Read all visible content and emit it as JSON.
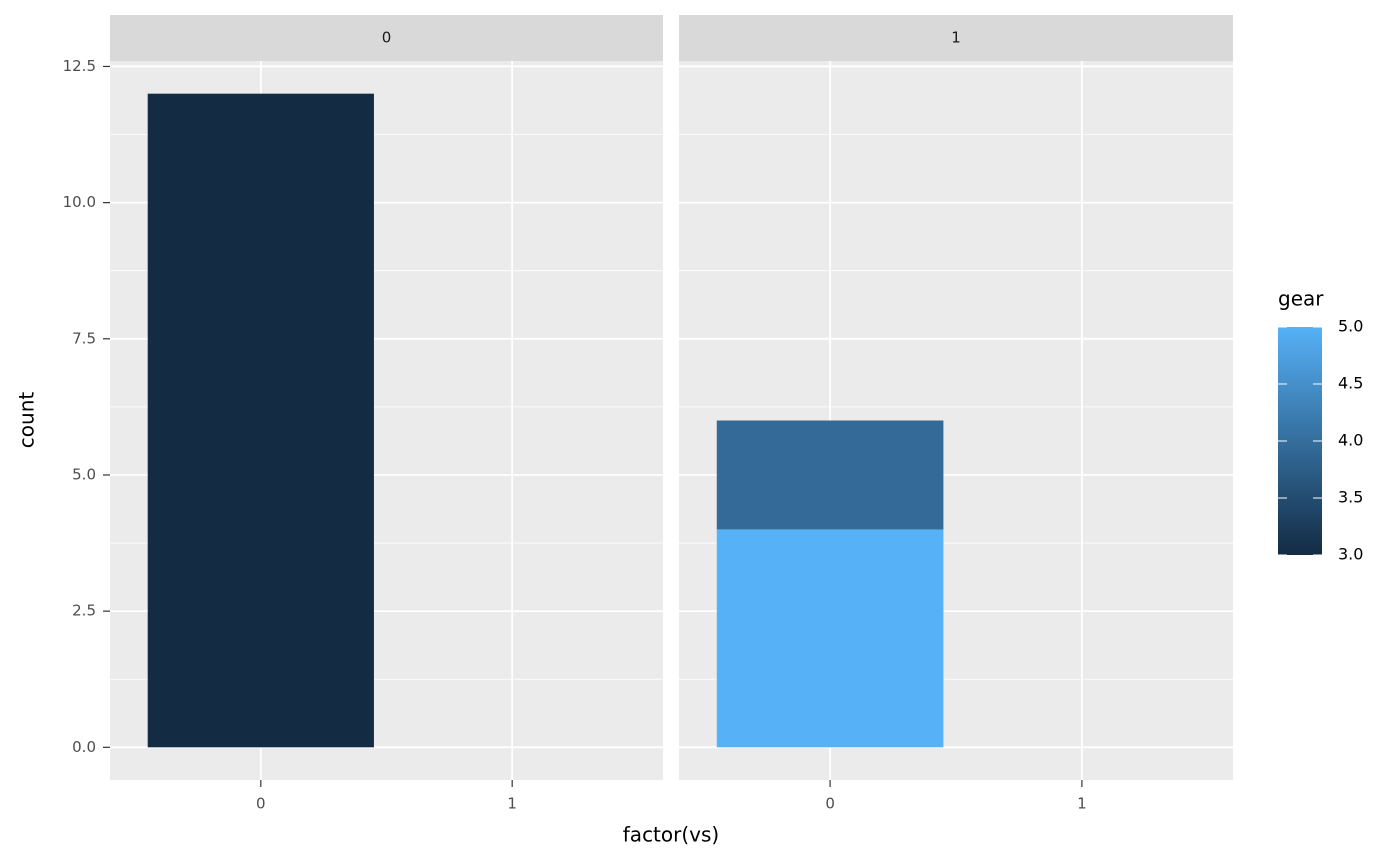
{
  "chart_data": {
    "type": "bar",
    "x_label": "factor(vs)",
    "y_label": "count",
    "ylim": [
      -0.6,
      12.6
    ],
    "yticks": [
      {
        "value": 0,
        "label": "0.0"
      },
      2.5,
      {
        "value": 5,
        "label": "5.0"
      },
      7.5,
      {
        "value": 10,
        "label": "10.0"
      },
      12.5
    ],
    "grid": true,
    "facets": [
      {
        "label": "0",
        "categories": [
          "0",
          "1"
        ],
        "series": [
          {
            "color": "#132b43",
            "values": [
              12,
              null
            ]
          }
        ]
      },
      {
        "label": "1",
        "categories": [
          "0",
          "1"
        ],
        "series": [
          {
            "color": "#56b1f7",
            "values": [
              4,
              null
            ]
          },
          {
            "color": "#336a98",
            "values": [
              2,
              null
            ]
          }
        ]
      }
    ],
    "legend": {
      "title": "gear",
      "position": "right",
      "limits": [
        3,
        5
      ],
      "low_color": "#132b43",
      "high_color": "#56b1f7",
      "ticks": [
        {
          "value": 3,
          "label": "3.0"
        },
        3.5,
        {
          "value": 4,
          "label": "4.0"
        },
        4.5,
        {
          "value": 5,
          "label": "5.0"
        }
      ]
    }
  }
}
